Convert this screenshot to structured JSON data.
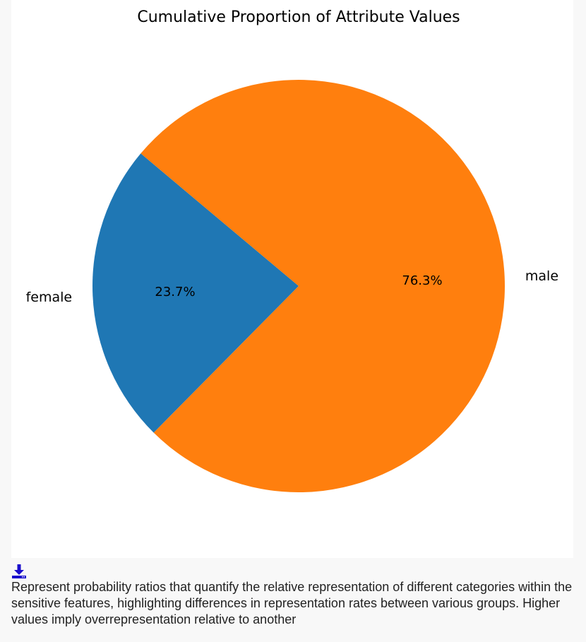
{
  "chart_data": {
    "type": "pie",
    "title": "Cumulative Proportion of Attribute Values",
    "categories": [
      "female",
      "male"
    ],
    "values": [
      23.7,
      76.3
    ],
    "value_labels": [
      "23.7%",
      "76.3%"
    ],
    "colors": [
      "#1f77b4",
      "#ff7f0e"
    ],
    "start_angle_deg": 140,
    "direction": "counterclockwise"
  },
  "download": {
    "icon": "download-icon",
    "color": "#1a0dcc"
  },
  "description": "Represent probability ratios that quantify the relative representation of different categories within the sensitive features, highlighting differences in representation rates between various groups. Higher values imply overrepresentation relative to another"
}
